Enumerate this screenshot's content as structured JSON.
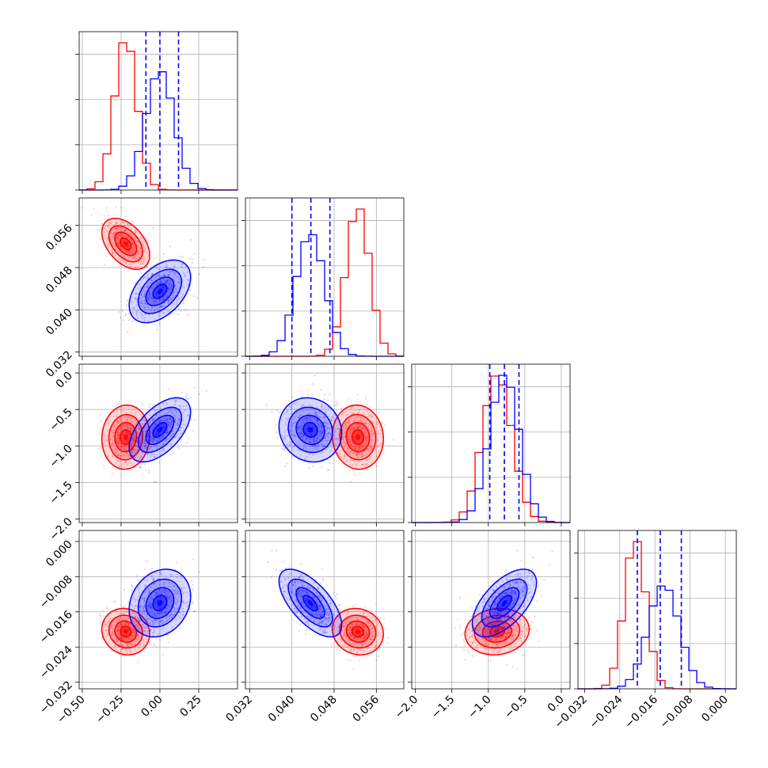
{
  "chart_data": {
    "type": "corner",
    "colors": {
      "primary": "#ff0000",
      "secondary": "#0000ff"
    },
    "grid": true,
    "n_params": 4,
    "params": [
      {
        "range": [
          -0.52,
          0.5
        ],
        "ticks": [
          -0.5,
          -0.25,
          0.0,
          0.25
        ],
        "tick_labels": [
          "−0.50",
          "−0.25",
          "0.00",
          "0.25"
        ]
      },
      {
        "range": [
          0.0312,
          0.0612
        ],
        "ticks": [
          0.032,
          0.04,
          0.048,
          0.056
        ],
        "tick_labels": [
          "0.032",
          "0.040",
          "0.048",
          "0.056"
        ]
      },
      {
        "range": [
          -2.05,
          0.12
        ],
        "ticks": [
          -2.0,
          -1.5,
          -1.0,
          -0.5,
          0.0
        ],
        "tick_labels": [
          "−2.0",
          "−1.5",
          "−1.0",
          "−0.5",
          "0.0"
        ]
      },
      {
        "range": [
          -0.0335,
          0.0025
        ],
        "ticks": [
          -0.032,
          -0.024,
          -0.016,
          -0.008,
          0.0
        ],
        "tick_labels": [
          "−0.032",
          "−0.024",
          "−0.016",
          "−0.008",
          "0.000"
        ]
      }
    ],
    "series": [
      {
        "color": "#ff0000",
        "mean": [
          -0.22,
          0.0525,
          -0.88,
          -0.0205
        ],
        "std": [
          0.07,
          0.0022,
          0.2,
          0.0024
        ],
        "correlations": {
          "0-1": -0.45,
          "0-2": 0.05,
          "0-3": -0.1,
          "1-2": -0.05,
          "1-3": -0.1,
          "2-3": 0.1
        }
      },
      {
        "color": "#0000ff",
        "mean": [
          0.0,
          0.0435,
          -0.78,
          -0.014
        ],
        "std": [
          0.09,
          0.0027,
          0.2,
          0.0035
        ],
        "correlations": {
          "0-1": 0.45,
          "0-2": 0.55,
          "0-3": 0.2,
          "1-2": -0.1,
          "1-3": -0.65,
          "2-3": 0.6
        }
      }
    ],
    "quantiles": [
      [
        -0.09,
        0.0,
        0.12
      ],
      [
        0.04,
        0.0436,
        0.0472
      ],
      [
        -0.98,
        -0.78,
        -0.58
      ],
      [
        -0.02,
        -0.0148,
        -0.01
      ]
    ]
  }
}
